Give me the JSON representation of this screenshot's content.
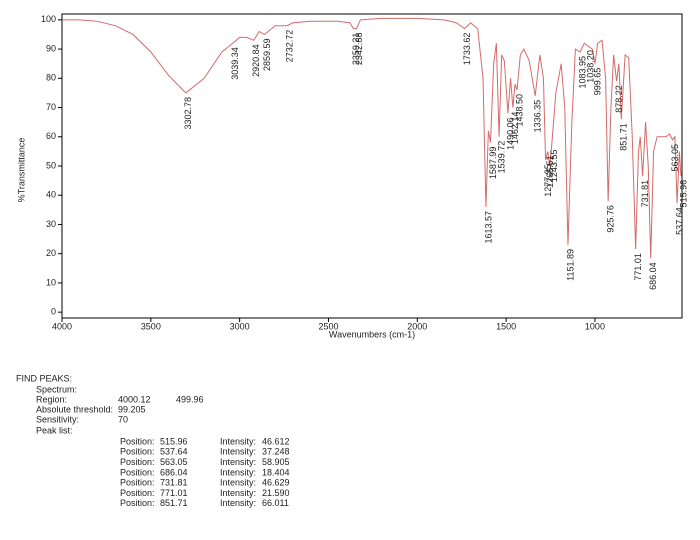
{
  "chart_data": {
    "type": "line",
    "x": [
      4000,
      3900,
      3800,
      3700,
      3600,
      3500,
      3400,
      3302.78,
      3200,
      3100,
      3039.34,
      3000,
      2960,
      2920.84,
      2890,
      2859.59,
      2800,
      2732.72,
      2700,
      2600,
      2450,
      2380,
      2359.21,
      2342.88,
      2320,
      2200,
      2000,
      1850,
      1780,
      1733.62,
      1700,
      1660,
      1630,
      1613.57,
      1600,
      1587.99,
      1570,
      1555,
      1539.72,
      1525,
      1510,
      1490.06,
      1475,
      1462.14,
      1450,
      1438.5,
      1420,
      1400,
      1370,
      1336.35,
      1310,
      1290,
      1277.95,
      1265.51,
      1255,
      1243.55,
      1220,
      1190,
      1170,
      1151.89,
      1130,
      1110,
      1083.95,
      1060,
      1038.2,
      1015,
      999.65,
      985,
      960,
      940,
      925.76,
      910,
      895,
      878.22,
      865,
      851.71,
      830,
      810,
      790,
      771.01,
      755,
      745,
      731.81,
      715,
      700,
      686.04,
      670,
      650,
      600,
      580,
      563.05,
      550,
      537.64,
      525,
      515.96
    ],
    "values": [
      100,
      100,
      99.5,
      98,
      95,
      89,
      81,
      75,
      80,
      89,
      92,
      94,
      94,
      93,
      96,
      95,
      98,
      98,
      99,
      99.5,
      99.5,
      99,
      97,
      97,
      100,
      100.5,
      100.5,
      100,
      99,
      97,
      99,
      97,
      80,
      36,
      62,
      58,
      85,
      92,
      60,
      88,
      86,
      68,
      80,
      70,
      78,
      76,
      88,
      90,
      86,
      74,
      88,
      80,
      52,
      55,
      50,
      57,
      75,
      85,
      70,
      23,
      65,
      90,
      89,
      92,
      91,
      90,
      85,
      92,
      93,
      80,
      38,
      70,
      88,
      79,
      85,
      66.011,
      88,
      87,
      60,
      21.59,
      55,
      60,
      46.629,
      65,
      50,
      18.404,
      55,
      60,
      60,
      61,
      58.905,
      60,
      37.248,
      55,
      46.612
    ],
    "color": "#d46a6a",
    "xlim": [
      4000,
      510
    ],
    "xticks": [
      4000,
      3500,
      3000,
      2500,
      2000,
      1500,
      1000
    ],
    "ylim": [
      -2,
      102
    ],
    "yticks": [
      0,
      10,
      20,
      30,
      40,
      50,
      60,
      70,
      80,
      90,
      100
    ],
    "xlabel": "Wavenumbers (cm-1)",
    "ylabel": "%Transmittance",
    "peaks": [
      {
        "x": 3302.78,
        "y": 75,
        "label": "3302.78"
      },
      {
        "x": 3039.34,
        "y": 92,
        "label": "3039.34"
      },
      {
        "x": 2920.84,
        "y": 93,
        "label": "2920.84"
      },
      {
        "x": 2859.59,
        "y": 95,
        "label": "2859.59"
      },
      {
        "x": 2732.72,
        "y": 98,
        "label": "2732.72"
      },
      {
        "x": 2359.21,
        "y": 97,
        "label": "2359.21"
      },
      {
        "x": 2342.88,
        "y": 97,
        "label": "2342.88"
      },
      {
        "x": 1733.62,
        "y": 97,
        "label": "1733.62"
      },
      {
        "x": 1613.57,
        "y": 36,
        "label": "1613.57"
      },
      {
        "x": 1587.99,
        "y": 58,
        "label": "1587.99"
      },
      {
        "x": 1539.72,
        "y": 60,
        "label": "1539.72"
      },
      {
        "x": 1490.06,
        "y": 68,
        "label": "1490.06"
      },
      {
        "x": 1462.14,
        "y": 70,
        "label": "1462.14"
      },
      {
        "x": 1438.5,
        "y": 76,
        "label": "1438.50"
      },
      {
        "x": 1336.35,
        "y": 74,
        "label": "1336.35"
      },
      {
        "x": 1277.95,
        "y": 52,
        "label": "1277.95"
      },
      {
        "x": 1265.51,
        "y": 55,
        "label": "1265.51"
      },
      {
        "x": 1243.55,
        "y": 57,
        "label": "1243.55"
      },
      {
        "x": 1151.89,
        "y": 23,
        "label": "1151.89"
      },
      {
        "x": 1083.95,
        "y": 89,
        "label": "1083.95"
      },
      {
        "x": 1038.2,
        "y": 91,
        "label": "1038.20"
      },
      {
        "x": 999.65,
        "y": 85,
        "label": "999.65"
      },
      {
        "x": 925.76,
        "y": 38,
        "label": "925.76"
      },
      {
        "x": 878.22,
        "y": 79,
        "label": "878.22"
      },
      {
        "x": 851.71,
        "y": 66.011,
        "label": "851.71"
      },
      {
        "x": 771.01,
        "y": 21.59,
        "label": "771.01"
      },
      {
        "x": 731.81,
        "y": 46.629,
        "label": "731.81"
      },
      {
        "x": 686.04,
        "y": 18.404,
        "label": "686.04"
      },
      {
        "x": 563.05,
        "y": 58.905,
        "label": "563.05"
      },
      {
        "x": 537.64,
        "y": 37.248,
        "label": "537.64"
      },
      {
        "x": 515.96,
        "y": 46.612,
        "label": "515.96"
      }
    ]
  },
  "find_peaks": {
    "title": "FIND PEAKS:",
    "spectrum_label": "Spectrum:",
    "region_label": "Region:",
    "region": [
      "4000.12",
      "499.96"
    ],
    "threshold_label": "Absolute threshold:",
    "threshold": "99.205",
    "sensitivity_label": "Sensitivity:",
    "sensitivity": "70",
    "peak_list_label": "Peak list:",
    "position_label": "Position:",
    "intensity_label": "Intensity:",
    "rows": [
      {
        "position": "515.96",
        "intensity": "46.612"
      },
      {
        "position": "537.64",
        "intensity": "37.248"
      },
      {
        "position": "563.05",
        "intensity": "58.905"
      },
      {
        "position": "686.04",
        "intensity": "18.404"
      },
      {
        "position": "731.81",
        "intensity": "46.629"
      },
      {
        "position": "771.01",
        "intensity": "21.590"
      },
      {
        "position": "851.71",
        "intensity": "66.011"
      }
    ]
  }
}
